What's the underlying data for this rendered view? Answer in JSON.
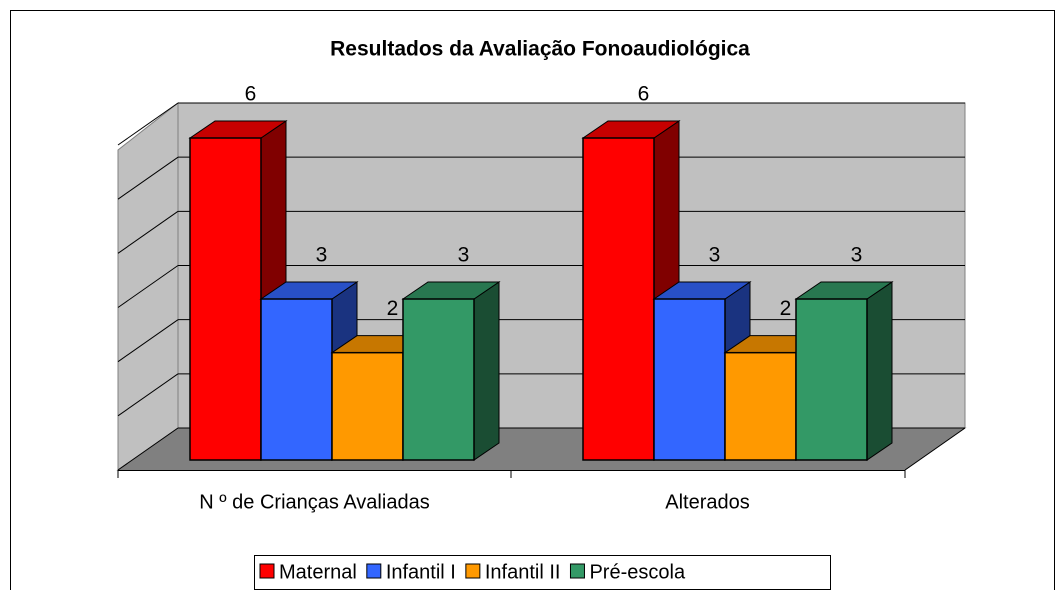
{
  "chart_data": {
    "type": "bar3d",
    "title": "Resultados da Avaliação Fonoaudiológica",
    "categories": [
      "N º de Crianças Avaliadas",
      "Alterados"
    ],
    "series": [
      {
        "name": "Maternal",
        "color": "#ff0000",
        "values": [
          6,
          6
        ]
      },
      {
        "name": "Infantil I",
        "color": "#3366ff",
        "values": [
          3,
          3
        ]
      },
      {
        "name": "Infantil II",
        "color": "#ff9900",
        "values": [
          2,
          2
        ]
      },
      {
        "name": "Pré-escola",
        "color": "#339966",
        "values": [
          3,
          3
        ]
      }
    ],
    "ylim": [
      0,
      6
    ],
    "yticks": [
      0,
      1,
      2,
      3,
      4,
      5,
      6
    ],
    "grid": true,
    "legend": "bottom"
  }
}
